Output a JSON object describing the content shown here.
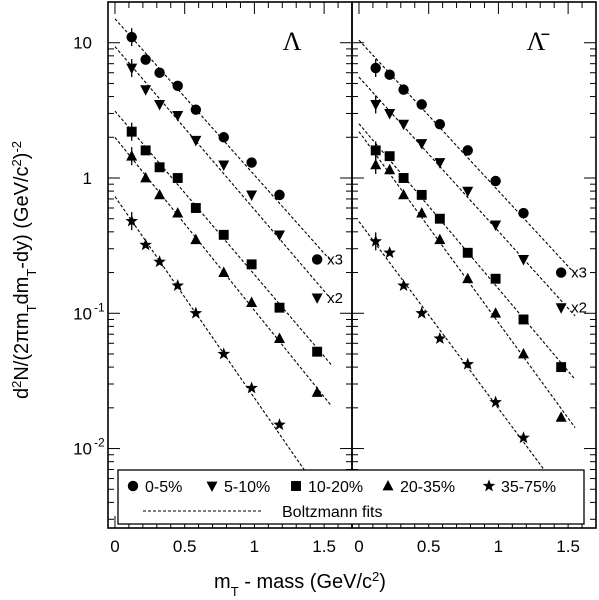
{
  "chart_data": {
    "type": "scatter",
    "y_log": true,
    "ylim": [
      0.0025,
      20
    ],
    "xlim": [
      -0.05,
      1.7
    ],
    "ylabel_parts": [
      "d",
      "2",
      "N/(2πm",
      "T",
      "dm",
      "T",
      "-dy) (GeV/c",
      "2",
      ")",
      "-2"
    ],
    "xlabel_parts": [
      "m",
      "T",
      " - mass (GeV/c",
      "2",
      ")"
    ],
    "y_ticks": [
      {
        "value": 10,
        "label": "10",
        "exp": ""
      },
      {
        "value": 1,
        "label": "1",
        "exp": ""
      },
      {
        "value": 0.1,
        "label": "10",
        "exp": "-1"
      },
      {
        "value": 0.01,
        "label": "10",
        "exp": "-2"
      }
    ],
    "x_ticks": [
      {
        "value": 0,
        "label": "0"
      },
      {
        "value": 0.5,
        "label": "0.5"
      },
      {
        "value": 1,
        "label": "1"
      },
      {
        "value": 1.5,
        "label": "1.5"
      }
    ],
    "legend": {
      "entries": [
        {
          "marker": "circle",
          "label": "0-5%"
        },
        {
          "marker": "triangle-down",
          "label": "5-10%"
        },
        {
          "marker": "square",
          "label": "10-20%"
        },
        {
          "marker": "triangle-up",
          "label": "20-35%"
        },
        {
          "marker": "star",
          "label": "35-75%"
        }
      ],
      "fit_label": "Boltzmann fits"
    },
    "panels": [
      {
        "label": "Λ",
        "series": [
          {
            "marker": "circle",
            "scale_label": "x3",
            "x": [
              0.12,
              0.22,
              0.32,
              0.45,
              0.58,
              0.78,
              0.98,
              1.18,
              1.45
            ],
            "y": [
              11,
              7.5,
              6,
              4.8,
              3.2,
              2.0,
              1.3,
              0.75,
              0.25
            ]
          },
          {
            "marker": "triangle-down",
            "scale_label": "x2",
            "x": [
              0.12,
              0.22,
              0.32,
              0.45,
              0.58,
              0.78,
              0.98,
              1.18,
              1.45
            ],
            "y": [
              6.5,
              4.5,
              3.5,
              2.9,
              1.9,
              1.25,
              0.75,
              0.38,
              0.13
            ]
          },
          {
            "marker": "square",
            "scale_label": "",
            "x": [
              0.12,
              0.22,
              0.32,
              0.45,
              0.58,
              0.78,
              0.98,
              1.18,
              1.45
            ],
            "y": [
              2.2,
              1.6,
              1.2,
              1.0,
              0.6,
              0.38,
              0.23,
              0.11,
              0.052
            ]
          },
          {
            "marker": "triangle-up",
            "scale_label": "",
            "x": [
              0.12,
              0.22,
              0.32,
              0.45,
              0.58,
              0.78,
              0.98,
              1.18,
              1.45
            ],
            "y": [
              1.45,
              1.0,
              0.75,
              0.55,
              0.35,
              0.2,
              0.12,
              0.065,
              0.026
            ]
          },
          {
            "marker": "star",
            "scale_label": "",
            "x": [
              0.12,
              0.22,
              0.32,
              0.45,
              0.58,
              0.78,
              0.98,
              1.18,
              1.45
            ],
            "y": [
              0.48,
              0.32,
              0.24,
              0.16,
              0.1,
              0.05,
              0.028,
              0.015,
              0.0042
            ]
          }
        ]
      },
      {
        "label": "Λ̄",
        "series": [
          {
            "marker": "circle",
            "scale_label": "x3",
            "x": [
              0.12,
              0.22,
              0.32,
              0.45,
              0.58,
              0.78,
              0.98,
              1.18,
              1.45
            ],
            "y": [
              6.5,
              5.8,
              4.5,
              3.5,
              2.5,
              1.6,
              0.95,
              0.55,
              0.2
            ]
          },
          {
            "marker": "triangle-down",
            "scale_label": "x2",
            "x": [
              0.12,
              0.22,
              0.32,
              0.45,
              0.58,
              0.78,
              0.98,
              1.18,
              1.45
            ],
            "y": [
              3.5,
              3.0,
              2.5,
              1.8,
              1.3,
              0.8,
              0.45,
              0.25,
              0.11
            ]
          },
          {
            "marker": "square",
            "scale_label": "",
            "x": [
              0.12,
              0.22,
              0.32,
              0.45,
              0.58,
              0.78,
              0.98,
              1.18,
              1.45
            ],
            "y": [
              1.6,
              1.45,
              1.0,
              0.75,
              0.5,
              0.28,
              0.18,
              0.09,
              0.04
            ]
          },
          {
            "marker": "triangle-up",
            "scale_label": "",
            "x": [
              0.12,
              0.22,
              0.32,
              0.45,
              0.58,
              0.78,
              0.98,
              1.18,
              1.45
            ],
            "y": [
              1.25,
              1.15,
              0.75,
              0.55,
              0.35,
              0.18,
              0.1,
              0.05,
              0.017
            ]
          },
          {
            "marker": "star",
            "scale_label": "",
            "x": [
              0.12,
              0.22,
              0.32,
              0.45,
              0.58,
              0.78,
              0.98,
              1.18,
              1.45
            ],
            "y": [
              0.34,
              0.28,
              0.16,
              0.1,
              0.065,
              0.042,
              0.022,
              0.012,
              0.0046
            ]
          }
        ]
      }
    ]
  }
}
